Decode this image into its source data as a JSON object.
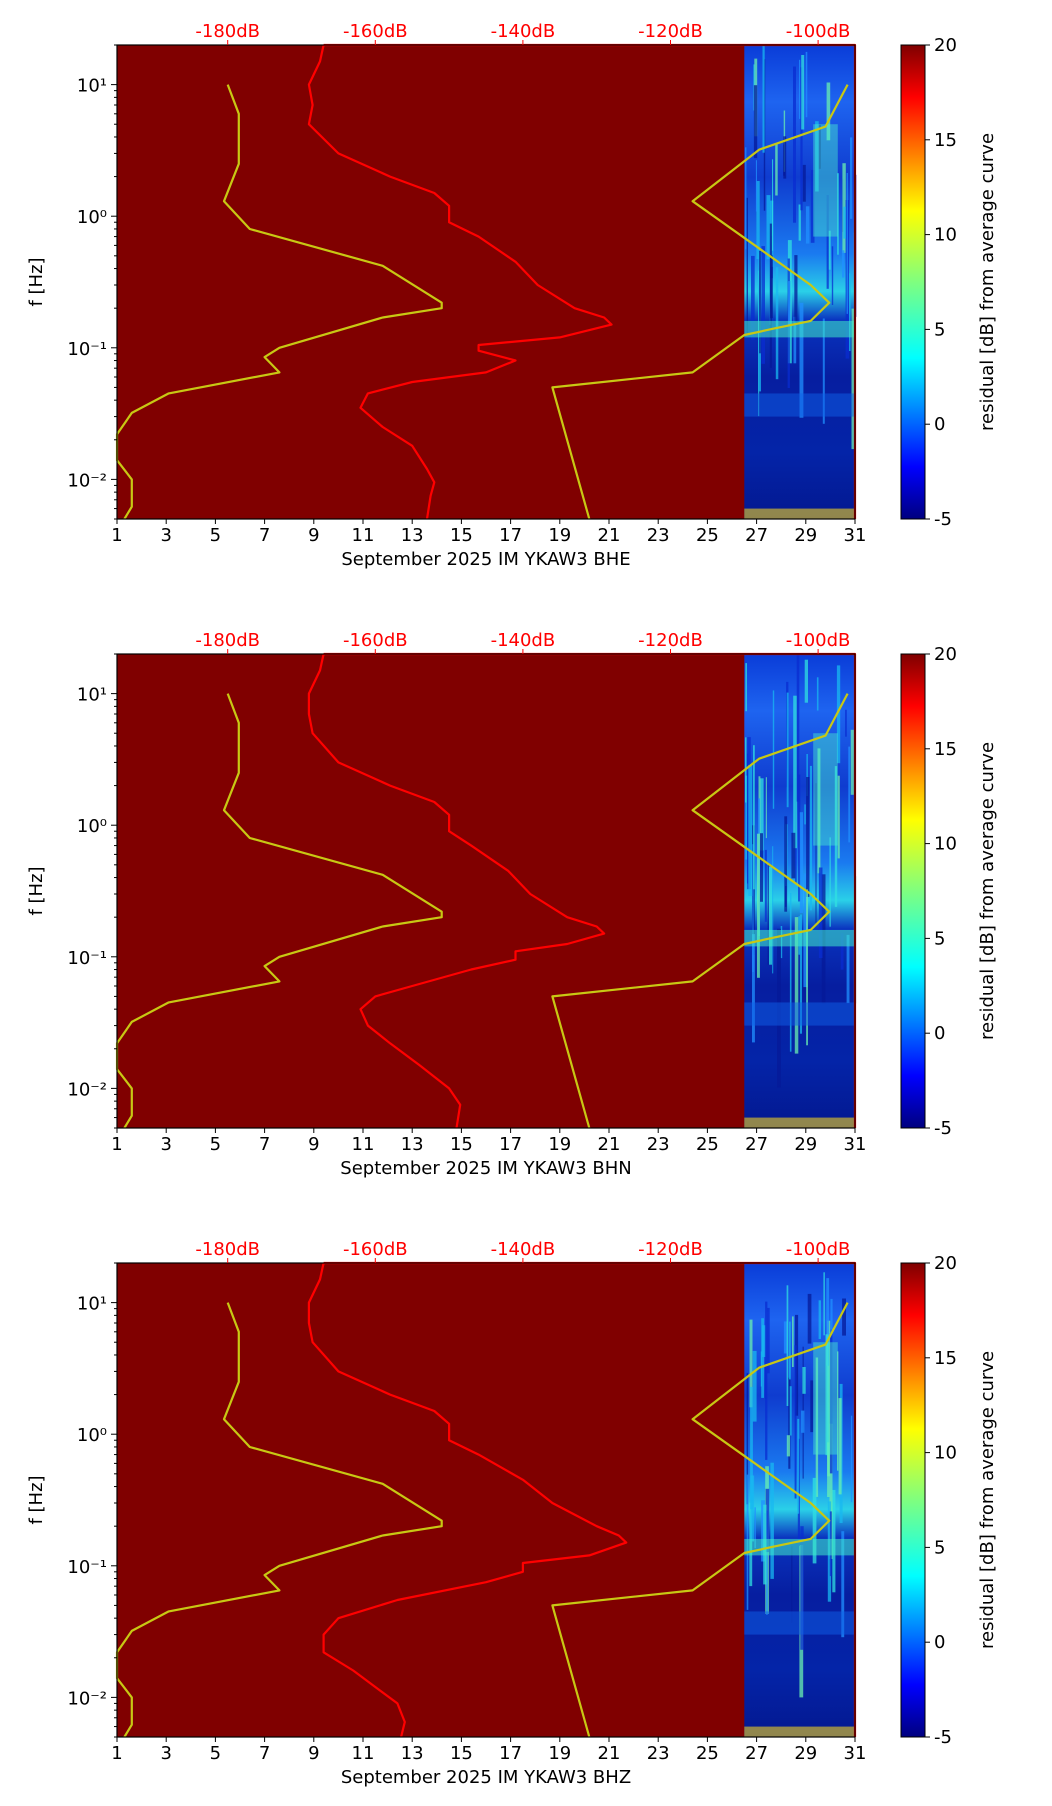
{
  "chart_data": [
    {
      "type": "heatmap",
      "channel": "BHE",
      "xlabel": "September 2025 IM YKAW3  BHE",
      "ylabel": "f [Hz]",
      "x_ticks": [
        "1",
        "3",
        "5",
        "7",
        "9",
        "11",
        "13",
        "15",
        "17",
        "19",
        "21",
        "23",
        "25",
        "27",
        "29",
        "31"
      ],
      "xlim": [
        1,
        31
      ],
      "y_scale": "log",
      "ylim": [
        0.005,
        20
      ],
      "y_tick_labels": [
        "10⁻²",
        "10⁻¹",
        "10⁰",
        "10¹"
      ],
      "top_axis_ticks": [
        "-180dB",
        "-160dB",
        "-140dB",
        "-120dB",
        "-100dB"
      ],
      "top_axis_range_db": [
        -195,
        -95
      ],
      "data_start_day": 26.5,
      "background_color": "#800000",
      "colorbar": {
        "label": "residual [dB] from average curve",
        "ticks": [
          "-5",
          "0",
          "5",
          "10",
          "15",
          "20"
        ],
        "range": [
          -5,
          20
        ]
      },
      "series": [
        {
          "color": "#ff0000",
          "points": [
            [
              -167,
              20
            ],
            [
              -167.5,
              15
            ],
            [
              -169,
              10
            ],
            [
              -168.5,
              7
            ],
            [
              -169,
              5
            ],
            [
              -165,
              3
            ],
            [
              -158,
              2
            ],
            [
              -152,
              1.5
            ],
            [
              -150,
              1.2
            ],
            [
              -150,
              0.9
            ],
            [
              -146,
              0.7
            ],
            [
              -141,
              0.45
            ],
            [
              -138,
              0.3
            ],
            [
              -133,
              0.2
            ],
            [
              -129,
              0.17
            ],
            [
              -128,
              0.15
            ],
            [
              -135,
              0.12
            ],
            [
              -146,
              0.105
            ],
            [
              -146,
              0.095
            ],
            [
              -141,
              0.08
            ],
            [
              -145,
              0.065
            ],
            [
              -155,
              0.055
            ],
            [
              -161,
              0.045
            ],
            [
              -162,
              0.035
            ],
            [
              -159,
              0.025
            ],
            [
              -155,
              0.018
            ],
            [
              -153,
              0.012
            ],
            [
              -152,
              0.0095
            ],
            [
              -152.5,
              0.0075
            ],
            [
              -153,
              0.005
            ]
          ]
        },
        {
          "color": "#ff0000",
          "points": [
            [
              -167,
              20
            ],
            [
              -95,
              20
            ],
            [
              -95,
              0.005
            ]
          ]
        },
        {
          "color": "#c8c814",
          "points": [
            [
              -180,
              10
            ],
            [
              -178.5,
              6
            ],
            [
              -178.5,
              2.5
            ],
            [
              -180.5,
              1.3
            ],
            [
              -177,
              0.8
            ],
            [
              -159,
              0.42
            ],
            [
              -151,
              0.22
            ],
            [
              -151,
              0.2
            ],
            [
              -159,
              0.17
            ],
            [
              -173,
              0.1
            ],
            [
              -175,
              0.085
            ],
            [
              -173,
              0.065
            ],
            [
              -188,
              0.045
            ],
            [
              -193,
              0.032
            ],
            [
              -195,
              0.022
            ],
            [
              -195,
              0.014
            ],
            [
              -193,
              0.01
            ],
            [
              -193,
              0.0062
            ],
            [
              -194,
              0.005
            ]
          ]
        },
        {
          "color": "#c8c814",
          "points": [
            [
              -96,
              10
            ],
            [
              -99,
              4.8
            ],
            [
              -108,
              3.2
            ],
            [
              -117,
              1.3
            ],
            [
              -101,
              0.3
            ],
            [
              -98.5,
              0.22
            ],
            [
              -101,
              0.16
            ],
            [
              -106,
              0.14
            ],
            [
              -110,
              0.125
            ],
            [
              -117,
              0.065
            ],
            [
              -136,
              0.05
            ],
            [
              -131,
              0.005
            ]
          ]
        }
      ]
    },
    {
      "type": "heatmap",
      "channel": "BHN",
      "xlabel": "September 2025 IM YKAW3  BHN",
      "ylabel": "f [Hz]",
      "x_ticks": [
        "1",
        "3",
        "5",
        "7",
        "9",
        "11",
        "13",
        "15",
        "17",
        "19",
        "21",
        "23",
        "25",
        "27",
        "29",
        "31"
      ],
      "xlim": [
        1,
        31
      ],
      "y_scale": "log",
      "ylim": [
        0.005,
        20
      ],
      "y_tick_labels": [
        "10⁻²",
        "10⁻¹",
        "10⁰",
        "10¹"
      ],
      "top_axis_ticks": [
        "-180dB",
        "-160dB",
        "-140dB",
        "-120dB",
        "-100dB"
      ],
      "top_axis_range_db": [
        -195,
        -95
      ],
      "data_start_day": 26.5,
      "background_color": "#800000",
      "colorbar": {
        "label": "residual [dB] from average curve",
        "ticks": [
          "-5",
          "0",
          "5",
          "10",
          "15",
          "20"
        ],
        "range": [
          -5,
          20
        ]
      },
      "series": [
        {
          "color": "#ff0000",
          "points": [
            [
              -167,
              20
            ],
            [
              -167.5,
              15
            ],
            [
              -169,
              10
            ],
            [
              -169,
              7
            ],
            [
              -168.5,
              5
            ],
            [
              -165,
              3
            ],
            [
              -158,
              2
            ],
            [
              -152,
              1.5
            ],
            [
              -150,
              1.2
            ],
            [
              -150,
              0.9
            ],
            [
              -147,
              0.7
            ],
            [
              -142,
              0.45
            ],
            [
              -139,
              0.3
            ],
            [
              -134,
              0.2
            ],
            [
              -130,
              0.17
            ],
            [
              -129,
              0.15
            ],
            [
              -134,
              0.125
            ],
            [
              -141,
              0.11
            ],
            [
              -141,
              0.095
            ],
            [
              -147,
              0.08
            ],
            [
              -155,
              0.06
            ],
            [
              -160,
              0.05
            ],
            [
              -162,
              0.04
            ],
            [
              -161,
              0.03
            ],
            [
              -158,
              0.022
            ],
            [
              -154,
              0.015
            ],
            [
              -150,
              0.01
            ],
            [
              -148.5,
              0.0075
            ],
            [
              -149,
              0.005
            ]
          ]
        },
        {
          "color": "#ff0000",
          "points": [
            [
              -167,
              20
            ],
            [
              -95,
              20
            ],
            [
              -95,
              0.005
            ]
          ]
        },
        {
          "color": "#c8c814",
          "points": [
            [
              -180,
              10
            ],
            [
              -178.5,
              6
            ],
            [
              -178.5,
              2.5
            ],
            [
              -180.5,
              1.3
            ],
            [
              -177,
              0.8
            ],
            [
              -159,
              0.42
            ],
            [
              -151,
              0.22
            ],
            [
              -151,
              0.2
            ],
            [
              -159,
              0.17
            ],
            [
              -173,
              0.1
            ],
            [
              -175,
              0.085
            ],
            [
              -173,
              0.065
            ],
            [
              -188,
              0.045
            ],
            [
              -193,
              0.032
            ],
            [
              -195,
              0.022
            ],
            [
              -195,
              0.014
            ],
            [
              -193,
              0.01
            ],
            [
              -193,
              0.0062
            ],
            [
              -194,
              0.005
            ]
          ]
        },
        {
          "color": "#c8c814",
          "points": [
            [
              -96,
              10
            ],
            [
              -99,
              4.8
            ],
            [
              -108,
              3.2
            ],
            [
              -117,
              1.3
            ],
            [
              -101,
              0.3
            ],
            [
              -98.5,
              0.22
            ],
            [
              -101,
              0.16
            ],
            [
              -106,
              0.14
            ],
            [
              -110,
              0.125
            ],
            [
              -117,
              0.065
            ],
            [
              -136,
              0.05
            ],
            [
              -131,
              0.005
            ]
          ]
        }
      ]
    },
    {
      "type": "heatmap",
      "channel": "BHZ",
      "xlabel": "September 2025 IM YKAW3  BHZ",
      "ylabel": "f [Hz]",
      "x_ticks": [
        "1",
        "3",
        "5",
        "7",
        "9",
        "11",
        "13",
        "15",
        "17",
        "19",
        "21",
        "23",
        "25",
        "27",
        "29",
        "31"
      ],
      "xlim": [
        1,
        31
      ],
      "y_scale": "log",
      "ylim": [
        0.005,
        20
      ],
      "y_tick_labels": [
        "10⁻²",
        "10⁻¹",
        "10⁰",
        "10¹"
      ],
      "top_axis_ticks": [
        "-180dB",
        "-160dB",
        "-140dB",
        "-120dB",
        "-100dB"
      ],
      "top_axis_range_db": [
        -195,
        -95
      ],
      "data_start_day": 26.5,
      "background_color": "#800000",
      "colorbar": {
        "label": "residual [dB] from average curve",
        "ticks": [
          "-5",
          "0",
          "5",
          "10",
          "15",
          "20"
        ],
        "range": [
          -5,
          20
        ]
      },
      "series": [
        {
          "color": "#ff0000",
          "points": [
            [
              -167,
              20
            ],
            [
              -167.5,
              15
            ],
            [
              -169,
              10
            ],
            [
              -169,
              7
            ],
            [
              -168.5,
              5
            ],
            [
              -165,
              3
            ],
            [
              -158,
              2
            ],
            [
              -152,
              1.5
            ],
            [
              -150,
              1.2
            ],
            [
              -150,
              0.9
            ],
            [
              -146,
              0.7
            ],
            [
              -140,
              0.45
            ],
            [
              -136,
              0.3
            ],
            [
              -130,
              0.2
            ],
            [
              -127,
              0.17
            ],
            [
              -126,
              0.15
            ],
            [
              -131,
              0.12
            ],
            [
              -140,
              0.105
            ],
            [
              -140,
              0.09
            ],
            [
              -145,
              0.075
            ],
            [
              -157,
              0.055
            ],
            [
              -165,
              0.04
            ],
            [
              -167,
              0.03
            ],
            [
              -167,
              0.022
            ],
            [
              -163,
              0.016
            ],
            [
              -160,
              0.012
            ],
            [
              -157,
              0.009
            ],
            [
              -156,
              0.0065
            ],
            [
              -156.5,
              0.005
            ]
          ]
        },
        {
          "color": "#ff0000",
          "points": [
            [
              -167,
              20
            ],
            [
              -95,
              20
            ],
            [
              -95,
              0.005
            ]
          ]
        },
        {
          "color": "#c8c814",
          "points": [
            [
              -180,
              10
            ],
            [
              -178.5,
              6
            ],
            [
              -178.5,
              2.5
            ],
            [
              -180.5,
              1.3
            ],
            [
              -177,
              0.8
            ],
            [
              -159,
              0.42
            ],
            [
              -151,
              0.22
            ],
            [
              -151,
              0.2
            ],
            [
              -159,
              0.17
            ],
            [
              -173,
              0.1
            ],
            [
              -175,
              0.085
            ],
            [
              -173,
              0.065
            ],
            [
              -188,
              0.045
            ],
            [
              -193,
              0.032
            ],
            [
              -195,
              0.022
            ],
            [
              -195,
              0.014
            ],
            [
              -193,
              0.01
            ],
            [
              -193,
              0.0062
            ],
            [
              -194,
              0.005
            ]
          ]
        },
        {
          "color": "#c8c814",
          "points": [
            [
              -96,
              10
            ],
            [
              -99,
              4.8
            ],
            [
              -108,
              3.2
            ],
            [
              -117,
              1.3
            ],
            [
              -101,
              0.3
            ],
            [
              -98.5,
              0.22
            ],
            [
              -101,
              0.16
            ],
            [
              -106,
              0.14
            ],
            [
              -110,
              0.125
            ],
            [
              -117,
              0.065
            ],
            [
              -136,
              0.05
            ],
            [
              -131,
              0.005
            ]
          ]
        }
      ]
    }
  ]
}
